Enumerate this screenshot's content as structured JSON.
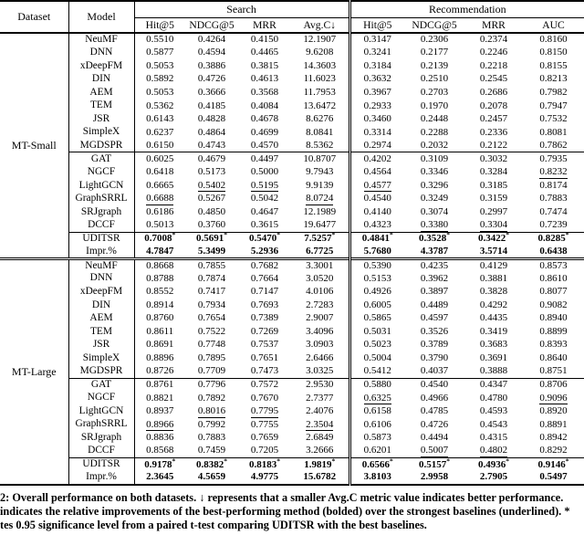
{
  "table": {
    "header": {
      "dataset": "Dataset",
      "model": "Model",
      "groups": [
        {
          "label": "Search",
          "metrics": [
            "Hit@5",
            "NDCG@5",
            "MRR",
            "Avg.C↓"
          ]
        },
        {
          "label": "Recommendation",
          "metrics": [
            "Hit@5",
            "NDCG@5",
            "MRR",
            "AUC"
          ]
        }
      ]
    },
    "sections": [
      {
        "dataset": "MT-Small",
        "rows": [
          {
            "model": "NeuMF",
            "values": [
              "0.5510",
              "0.4264",
              "0.4150",
              "12.1907",
              "0.3147",
              "0.2306",
              "0.2374",
              "0.8160"
            ]
          },
          {
            "model": "DNN",
            "values": [
              "0.5877",
              "0.4594",
              "0.4465",
              "9.6208",
              "0.3241",
              "0.2177",
              "0.2246",
              "0.8150"
            ]
          },
          {
            "model": "xDeepFM",
            "values": [
              "0.5053",
              "0.3886",
              "0.3815",
              "14.3603",
              "0.3184",
              "0.2139",
              "0.2218",
              "0.8155"
            ]
          },
          {
            "model": "DIN",
            "values": [
              "0.5892",
              "0.4726",
              "0.4613",
              "11.6023",
              "0.3632",
              "0.2510",
              "0.2545",
              "0.8213"
            ]
          },
          {
            "model": "AEM",
            "values": [
              "0.5053",
              "0.3666",
              "0.3568",
              "11.7953",
              "0.3967",
              "0.2703",
              "0.2686",
              "0.7982"
            ]
          },
          {
            "model": "TEM",
            "values": [
              "0.5362",
              "0.4185",
              "0.4084",
              "13.6472",
              "0.2933",
              "0.1970",
              "0.2078",
              "0.7947"
            ]
          },
          {
            "model": "JSR",
            "values": [
              "0.6143",
              "0.4828",
              "0.4678",
              "8.6276",
              "0.3460",
              "0.2448",
              "0.2457",
              "0.7532"
            ]
          },
          {
            "model": "SimpleX",
            "values": [
              "0.6237",
              "0.4864",
              "0.4699",
              "8.0841",
              "0.3314",
              "0.2288",
              "0.2336",
              "0.8081"
            ]
          },
          {
            "model": "MGDSPR",
            "values": [
              "0.6150",
              "0.4743",
              "0.4570",
              "8.5362",
              "0.2974",
              "0.2032",
              "0.2122",
              "0.7862"
            ]
          },
          {
            "model": "GAT",
            "values": [
              "0.6025",
              "0.4679",
              "0.4497",
              "10.8707",
              "0.4202",
              "0.3109",
              "0.3032",
              "0.7935"
            ],
            "rule_above": true
          },
          {
            "model": "NGCF",
            "values": [
              "0.6418",
              "0.5173",
              "0.5000",
              "9.7943",
              "0.4564",
              "0.3346",
              "0.3284",
              "0.8232"
            ],
            "underline": [
              7
            ]
          },
          {
            "model": "LightGCN",
            "values": [
              "0.6665",
              "0.5402",
              "0.5195",
              "9.9139",
              "0.4577",
              "0.3296",
              "0.3185",
              "0.8174"
            ],
            "underline": [
              1,
              2,
              4
            ]
          },
          {
            "model": "GraphSRRL",
            "values": [
              "0.6688",
              "0.5267",
              "0.5042",
              "8.0724",
              "0.4540",
              "0.3249",
              "0.3159",
              "0.7883"
            ],
            "underline": [
              0,
              3
            ]
          },
          {
            "model": "SRJgraph",
            "values": [
              "0.6186",
              "0.4850",
              "0.4647",
              "12.1989",
              "0.4140",
              "0.3074",
              "0.2997",
              "0.7474"
            ]
          },
          {
            "model": "DCCF",
            "values": [
              "0.5013",
              "0.3760",
              "0.3615",
              "19.6477",
              "0.4323",
              "0.3380",
              "0.3304",
              "0.7239"
            ],
            "underline": [
              5,
              6
            ]
          },
          {
            "model": "UDITSR",
            "values": [
              "0.7008",
              "0.5691",
              "0.5470",
              "7.5257",
              "0.4841",
              "0.3528",
              "0.3422",
              "0.8285"
            ],
            "bold": true,
            "asterisk": true,
            "rule_above": true
          },
          {
            "model": "Impr.%",
            "values": [
              "4.7847",
              "5.3499",
              "5.2936",
              "6.7725",
              "5.7680",
              "4.3787",
              "3.5714",
              "0.6438"
            ],
            "bold": true
          }
        ]
      },
      {
        "dataset": "MT-Large",
        "rows": [
          {
            "model": "NeuMF",
            "values": [
              "0.8668",
              "0.7855",
              "0.7682",
              "3.3001",
              "0.5390",
              "0.4235",
              "0.4129",
              "0.8573"
            ]
          },
          {
            "model": "DNN",
            "values": [
              "0.8788",
              "0.7874",
              "0.7664",
              "3.0520",
              "0.5153",
              "0.3962",
              "0.3881",
              "0.8610"
            ]
          },
          {
            "model": "xDeepFM",
            "values": [
              "0.8552",
              "0.7417",
              "0.7147",
              "4.0106",
              "0.4926",
              "0.3897",
              "0.3828",
              "0.8077"
            ]
          },
          {
            "model": "DIN",
            "values": [
              "0.8914",
              "0.7934",
              "0.7693",
              "2.7283",
              "0.6005",
              "0.4489",
              "0.4292",
              "0.9082"
            ]
          },
          {
            "model": "AEM",
            "values": [
              "0.8760",
              "0.7654",
              "0.7389",
              "2.9007",
              "0.5865",
              "0.4597",
              "0.4435",
              "0.8940"
            ]
          },
          {
            "model": "TEM",
            "values": [
              "0.8611",
              "0.7522",
              "0.7269",
              "3.4096",
              "0.5031",
              "0.3526",
              "0.3419",
              "0.8899"
            ]
          },
          {
            "model": "JSR",
            "values": [
              "0.8691",
              "0.7748",
              "0.7537",
              "3.0903",
              "0.5023",
              "0.3789",
              "0.3683",
              "0.8393"
            ]
          },
          {
            "model": "SimpleX",
            "values": [
              "0.8896",
              "0.7895",
              "0.7651",
              "2.6466",
              "0.5004",
              "0.3790",
              "0.3691",
              "0.8640"
            ]
          },
          {
            "model": "MGDSPR",
            "values": [
              "0.8726",
              "0.7709",
              "0.7473",
              "3.0325",
              "0.5412",
              "0.4037",
              "0.3888",
              "0.8751"
            ]
          },
          {
            "model": "GAT",
            "values": [
              "0.8761",
              "0.7796",
              "0.7572",
              "2.9530",
              "0.5880",
              "0.4540",
              "0.4347",
              "0.8706"
            ],
            "rule_above": true
          },
          {
            "model": "NGCF",
            "values": [
              "0.8821",
              "0.7892",
              "0.7670",
              "2.7377",
              "0.6325",
              "0.4966",
              "0.4780",
              "0.9096"
            ],
            "underline": [
              4,
              7
            ]
          },
          {
            "model": "LightGCN",
            "values": [
              "0.8937",
              "0.8016",
              "0.7795",
              "2.4076",
              "0.6158",
              "0.4785",
              "0.4593",
              "0.8920"
            ],
            "underline": [
              1,
              2
            ]
          },
          {
            "model": "GraphSRRL",
            "values": [
              "0.8966",
              "0.7992",
              "0.7755",
              "2.3504",
              "0.6106",
              "0.4726",
              "0.4543",
              "0.8891"
            ],
            "underline": [
              0,
              3
            ]
          },
          {
            "model": "SRJgraph",
            "values": [
              "0.8836",
              "0.7883",
              "0.7659",
              "2.6849",
              "0.5873",
              "0.4494",
              "0.4315",
              "0.8942"
            ]
          },
          {
            "model": "DCCF",
            "values": [
              "0.8568",
              "0.7459",
              "0.7205",
              "3.2666",
              "0.6201",
              "0.5007",
              "0.4802",
              "0.8292"
            ],
            "underline": [
              5,
              6
            ]
          },
          {
            "model": "UDITSR",
            "values": [
              "0.9178",
              "0.8382",
              "0.8183",
              "1.9819",
              "0.6566",
              "0.5157",
              "0.4936",
              "0.9146"
            ],
            "bold": true,
            "asterisk": true,
            "rule_above": true
          },
          {
            "model": "Impr.%",
            "values": [
              "2.3645",
              "4.5659",
              "4.9775",
              "15.6782",
              "3.8103",
              "2.9958",
              "2.7905",
              "0.5497"
            ],
            "bold": true
          }
        ]
      }
    ]
  },
  "caption": {
    "line1": "2: Overall performance on both datasets. ↓ represents that a smaller Avg.C metric value indicates better performance.",
    "line2": "indicates the relative improvements of the best-performing method (bolded) over the strongest baselines (underlined). *",
    "line3": "tes 0.95 significance level from a paired t-test comparing UDITSR with the best baselines."
  }
}
